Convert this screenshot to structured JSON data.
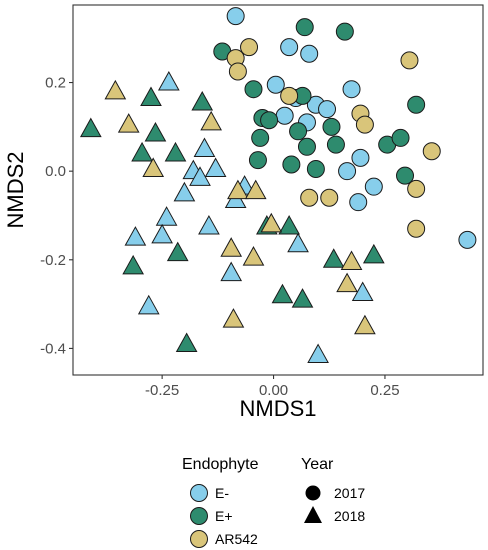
{
  "chart_data": {
    "type": "scatter",
    "xlabel": "NMDS1",
    "ylabel": "NMDS2",
    "xlim": [
      -0.45,
      0.47
    ],
    "ylim": [
      -0.46,
      0.375
    ],
    "x_ticks": [
      -0.25,
      0.0,
      0.25
    ],
    "x_tick_labels": [
      "-0.25",
      "0.00",
      "0.25"
    ],
    "y_ticks": [
      -0.4,
      -0.2,
      0.0,
      0.2
    ],
    "y_tick_labels": [
      "-0.4",
      "-0.2",
      "0.0",
      "0.2"
    ],
    "grid": false,
    "legend_position": "bottom",
    "colors": {
      "E-": "#87ceeb",
      "E+": "#2e8b6e",
      "AR542": "#d9c57a"
    },
    "shapes": {
      "2017": "circle",
      "2018": "triangle"
    },
    "legends": [
      {
        "title": "Endophyte",
        "entries": [
          "E-",
          "E+",
          "AR542"
        ]
      },
      {
        "title": "Year",
        "entries": [
          "2017",
          "2018"
        ]
      }
    ],
    "points": [
      {
        "x": -0.085,
        "y": 0.35,
        "endophyte": "E-",
        "year": "2017"
      },
      {
        "x": 0.035,
        "y": 0.28,
        "endophyte": "E-",
        "year": "2017"
      },
      {
        "x": 0.08,
        "y": 0.265,
        "endophyte": "E-",
        "year": "2017"
      },
      {
        "x": 0.005,
        "y": 0.195,
        "endophyte": "E-",
        "year": "2017"
      },
      {
        "x": 0.05,
        "y": 0.165,
        "endophyte": "E-",
        "year": "2017"
      },
      {
        "x": 0.095,
        "y": 0.15,
        "endophyte": "E-",
        "year": "2017"
      },
      {
        "x": 0.12,
        "y": 0.14,
        "endophyte": "E-",
        "year": "2017"
      },
      {
        "x": 0.175,
        "y": 0.185,
        "endophyte": "E-",
        "year": "2017"
      },
      {
        "x": 0.025,
        "y": 0.125,
        "endophyte": "E-",
        "year": "2017"
      },
      {
        "x": 0.075,
        "y": 0.11,
        "endophyte": "E-",
        "year": "2017"
      },
      {
        "x": 0.195,
        "y": 0.03,
        "endophyte": "E-",
        "year": "2017"
      },
      {
        "x": 0.165,
        "y": 0.0,
        "endophyte": "E-",
        "year": "2017"
      },
      {
        "x": 0.225,
        "y": -0.035,
        "endophyte": "E-",
        "year": "2017"
      },
      {
        "x": 0.19,
        "y": -0.07,
        "endophyte": "E-",
        "year": "2017"
      },
      {
        "x": 0.435,
        "y": -0.155,
        "endophyte": "E-",
        "year": "2017"
      },
      {
        "x": 0.07,
        "y": 0.325,
        "endophyte": "E+",
        "year": "2017"
      },
      {
        "x": 0.16,
        "y": 0.315,
        "endophyte": "E+",
        "year": "2017"
      },
      {
        "x": -0.115,
        "y": 0.27,
        "endophyte": "E+",
        "year": "2017"
      },
      {
        "x": -0.045,
        "y": 0.185,
        "endophyte": "E+",
        "year": "2017"
      },
      {
        "x": 0.065,
        "y": 0.17,
        "endophyte": "E+",
        "year": "2017"
      },
      {
        "x": -0.025,
        "y": 0.12,
        "endophyte": "E+",
        "year": "2017"
      },
      {
        "x": -0.01,
        "y": 0.115,
        "endophyte": "E+",
        "year": "2017"
      },
      {
        "x": 0.055,
        "y": 0.09,
        "endophyte": "E+",
        "year": "2017"
      },
      {
        "x": 0.13,
        "y": 0.1,
        "endophyte": "E+",
        "year": "2017"
      },
      {
        "x": -0.03,
        "y": 0.075,
        "endophyte": "E+",
        "year": "2017"
      },
      {
        "x": 0.075,
        "y": 0.055,
        "endophyte": "E+",
        "year": "2017"
      },
      {
        "x": 0.14,
        "y": 0.06,
        "endophyte": "E+",
        "year": "2017"
      },
      {
        "x": 0.255,
        "y": 0.06,
        "endophyte": "E+",
        "year": "2017"
      },
      {
        "x": 0.285,
        "y": 0.075,
        "endophyte": "E+",
        "year": "2017"
      },
      {
        "x": 0.32,
        "y": 0.15,
        "endophyte": "E+",
        "year": "2017"
      },
      {
        "x": -0.035,
        "y": 0.025,
        "endophyte": "E+",
        "year": "2017"
      },
      {
        "x": 0.04,
        "y": 0.015,
        "endophyte": "E+",
        "year": "2017"
      },
      {
        "x": 0.095,
        "y": 0.005,
        "endophyte": "E+",
        "year": "2017"
      },
      {
        "x": 0.295,
        "y": -0.01,
        "endophyte": "E+",
        "year": "2017"
      },
      {
        "x": -0.055,
        "y": 0.28,
        "endophyte": "AR542",
        "year": "2017"
      },
      {
        "x": -0.085,
        "y": 0.255,
        "endophyte": "AR542",
        "year": "2017"
      },
      {
        "x": -0.08,
        "y": 0.225,
        "endophyte": "AR542",
        "year": "2017"
      },
      {
        "x": 0.305,
        "y": 0.25,
        "endophyte": "AR542",
        "year": "2017"
      },
      {
        "x": 0.035,
        "y": 0.17,
        "endophyte": "AR542",
        "year": "2017"
      },
      {
        "x": 0.195,
        "y": 0.13,
        "endophyte": "AR542",
        "year": "2017"
      },
      {
        "x": 0.205,
        "y": 0.105,
        "endophyte": "AR542",
        "year": "2017"
      },
      {
        "x": 0.355,
        "y": 0.045,
        "endophyte": "AR542",
        "year": "2017"
      },
      {
        "x": 0.32,
        "y": -0.04,
        "endophyte": "AR542",
        "year": "2017"
      },
      {
        "x": 0.08,
        "y": -0.06,
        "endophyte": "AR542",
        "year": "2017"
      },
      {
        "x": 0.125,
        "y": -0.06,
        "endophyte": "AR542",
        "year": "2017"
      },
      {
        "x": 0.32,
        "y": -0.13,
        "endophyte": "AR542",
        "year": "2017"
      },
      {
        "x": -0.235,
        "y": 0.2,
        "endophyte": "E-",
        "year": "2018"
      },
      {
        "x": -0.155,
        "y": 0.05,
        "endophyte": "E-",
        "year": "2018"
      },
      {
        "x": -0.18,
        "y": 0.0,
        "endophyte": "E-",
        "year": "2018"
      },
      {
        "x": -0.13,
        "y": 0.005,
        "endophyte": "E-",
        "year": "2018"
      },
      {
        "x": -0.165,
        "y": -0.015,
        "endophyte": "E-",
        "year": "2018"
      },
      {
        "x": -0.2,
        "y": -0.05,
        "endophyte": "E-",
        "year": "2018"
      },
      {
        "x": -0.065,
        "y": -0.035,
        "endophyte": "E-",
        "year": "2018"
      },
      {
        "x": -0.085,
        "y": -0.065,
        "endophyte": "E-",
        "year": "2018"
      },
      {
        "x": -0.24,
        "y": -0.105,
        "endophyte": "E-",
        "year": "2018"
      },
      {
        "x": -0.145,
        "y": -0.125,
        "endophyte": "E-",
        "year": "2018"
      },
      {
        "x": -0.31,
        "y": -0.15,
        "endophyte": "E-",
        "year": "2018"
      },
      {
        "x": -0.25,
        "y": -0.145,
        "endophyte": "E-",
        "year": "2018"
      },
      {
        "x": 0.055,
        "y": -0.165,
        "endophyte": "E-",
        "year": "2018"
      },
      {
        "x": -0.095,
        "y": -0.23,
        "endophyte": "E-",
        "year": "2018"
      },
      {
        "x": 0.2,
        "y": -0.275,
        "endophyte": "E-",
        "year": "2018"
      },
      {
        "x": -0.28,
        "y": -0.305,
        "endophyte": "E-",
        "year": "2018"
      },
      {
        "x": 0.1,
        "y": -0.415,
        "endophyte": "E-",
        "year": "2018"
      },
      {
        "x": -0.41,
        "y": 0.095,
        "endophyte": "E+",
        "year": "2018"
      },
      {
        "x": -0.275,
        "y": 0.165,
        "endophyte": "E+",
        "year": "2018"
      },
      {
        "x": -0.16,
        "y": 0.155,
        "endophyte": "E+",
        "year": "2018"
      },
      {
        "x": -0.265,
        "y": 0.085,
        "endophyte": "E+",
        "year": "2018"
      },
      {
        "x": -0.295,
        "y": 0.04,
        "endophyte": "E+",
        "year": "2018"
      },
      {
        "x": -0.22,
        "y": 0.04,
        "endophyte": "E+",
        "year": "2018"
      },
      {
        "x": -0.015,
        "y": -0.125,
        "endophyte": "E+",
        "year": "2018"
      },
      {
        "x": 0.035,
        "y": -0.125,
        "endophyte": "E+",
        "year": "2018"
      },
      {
        "x": -0.215,
        "y": -0.185,
        "endophyte": "E+",
        "year": "2018"
      },
      {
        "x": -0.315,
        "y": -0.215,
        "endophyte": "E+",
        "year": "2018"
      },
      {
        "x": 0.135,
        "y": -0.2,
        "endophyte": "E+",
        "year": "2018"
      },
      {
        "x": 0.225,
        "y": -0.19,
        "endophyte": "E+",
        "year": "2018"
      },
      {
        "x": 0.02,
        "y": -0.28,
        "endophyte": "E+",
        "year": "2018"
      },
      {
        "x": 0.065,
        "y": -0.29,
        "endophyte": "E+",
        "year": "2018"
      },
      {
        "x": -0.195,
        "y": -0.39,
        "endophyte": "E+",
        "year": "2018"
      },
      {
        "x": -0.355,
        "y": 0.18,
        "endophyte": "AR542",
        "year": "2018"
      },
      {
        "x": -0.325,
        "y": 0.105,
        "endophyte": "AR542",
        "year": "2018"
      },
      {
        "x": -0.14,
        "y": 0.11,
        "endophyte": "AR542",
        "year": "2018"
      },
      {
        "x": -0.27,
        "y": 0.005,
        "endophyte": "AR542",
        "year": "2018"
      },
      {
        "x": -0.08,
        "y": -0.045,
        "endophyte": "AR542",
        "year": "2018"
      },
      {
        "x": -0.04,
        "y": -0.045,
        "endophyte": "AR542",
        "year": "2018"
      },
      {
        "x": -0.095,
        "y": -0.175,
        "endophyte": "AR542",
        "year": "2018"
      },
      {
        "x": -0.005,
        "y": -0.12,
        "endophyte": "AR542",
        "year": "2018"
      },
      {
        "x": -0.045,
        "y": -0.195,
        "endophyte": "AR542",
        "year": "2018"
      },
      {
        "x": 0.175,
        "y": -0.205,
        "endophyte": "AR542",
        "year": "2018"
      },
      {
        "x": 0.165,
        "y": -0.255,
        "endophyte": "AR542",
        "year": "2018"
      },
      {
        "x": 0.205,
        "y": -0.35,
        "endophyte": "AR542",
        "year": "2018"
      },
      {
        "x": -0.09,
        "y": -0.335,
        "endophyte": "AR542",
        "year": "2018"
      }
    ]
  }
}
